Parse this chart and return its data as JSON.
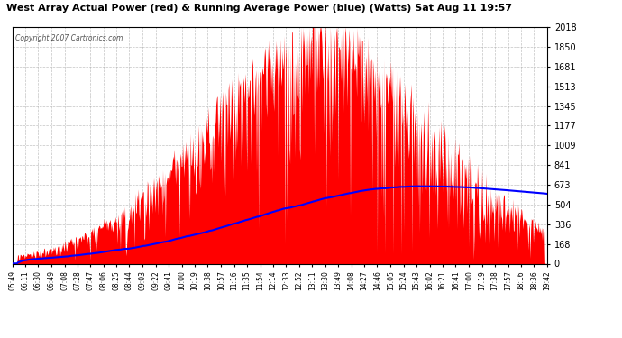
{
  "title": "West Array Actual Power (red) & Running Average Power (blue) (Watts) Sat Aug 11 19:57",
  "copyright": "Copyright 2007 Cartronics.com",
  "y_ticks": [
    0.0,
    168.1,
    336.3,
    504.4,
    672.6,
    840.7,
    1008.9,
    1177.0,
    1345.1,
    1513.3,
    1681.4,
    1849.6,
    2017.7
  ],
  "x_labels": [
    "05:49",
    "06:11",
    "06:30",
    "06:49",
    "07:08",
    "07:28",
    "07:47",
    "08:06",
    "08:25",
    "08:44",
    "09:03",
    "09:22",
    "09:41",
    "10:00",
    "10:19",
    "10:38",
    "10:57",
    "11:16",
    "11:35",
    "11:54",
    "12:14",
    "12:33",
    "12:52",
    "13:11",
    "13:30",
    "13:49",
    "14:08",
    "14:27",
    "14:46",
    "15:05",
    "15:24",
    "15:43",
    "16:02",
    "16:21",
    "16:41",
    "17:00",
    "17:19",
    "17:38",
    "17:57",
    "18:16",
    "18:36",
    "19:42"
  ],
  "bg_color": "#ffffff",
  "plot_bg_color": "#ffffff",
  "grid_color": "#aaaaaa",
  "fill_color": "#ff0000",
  "line_color": "#0000ff",
  "title_color": "#000000",
  "border_color": "#000000",
  "ymax": 2017.7,
  "ymin": 0.0
}
